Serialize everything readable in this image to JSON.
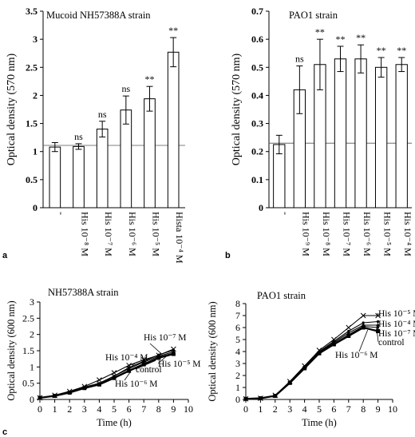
{
  "panel_letters": [
    "a",
    "b",
    "c"
  ],
  "chart_data": [
    {
      "type": "bar",
      "panel": "a",
      "title": "Mucoid NH57388A strain",
      "ylabel": "Optical density (570 nm)",
      "ylim": [
        0,
        3.5
      ],
      "yticks": [
        "0",
        "0.5",
        "1",
        "1.5",
        "2",
        "2.5",
        "3",
        "3.5"
      ],
      "categories": [
        "-",
        "His 10⁻⁸ M",
        "His 10⁻⁷ M",
        "His 10⁻⁶ M",
        "His 10⁻⁵ M",
        "Hista 10⁻⁴ M"
      ],
      "values": [
        1.08,
        1.09,
        1.4,
        1.74,
        1.94,
        2.77
      ],
      "errors": [
        0.08,
        0.05,
        0.14,
        0.25,
        0.22,
        0.26
      ],
      "annotations": [
        "",
        "ns",
        "ns",
        "ns",
        "**",
        "**"
      ],
      "reference_line": 1.11,
      "grid": false
    },
    {
      "type": "bar",
      "panel": "b",
      "title": "PAO1 strain",
      "ylabel": "Optical density (570 nm)",
      "ylim": [
        0,
        0.7
      ],
      "yticks": [
        "0",
        "0.1",
        "0.2",
        "0.3",
        "0.4",
        "0.5",
        "0.6",
        "0.7"
      ],
      "categories": [
        "-",
        "His 10⁻⁹ M",
        "His 10⁻⁸ M",
        "His 10⁻⁷ M",
        "His 10⁻⁶ M",
        "His 10⁻⁵ M",
        "His 10⁻⁴ M"
      ],
      "values": [
        0.225,
        0.42,
        0.51,
        0.53,
        0.53,
        0.5,
        0.51
      ],
      "errors": [
        0.033,
        0.085,
        0.09,
        0.045,
        0.05,
        0.035,
        0.025
      ],
      "annotations": [
        "",
        "ns",
        "**",
        "**",
        "**",
        "**",
        "**"
      ],
      "reference_line": 0.23,
      "grid": false
    },
    {
      "type": "line",
      "panel": "c-left",
      "title": "NH57388A strain",
      "xlabel": "Time (h)",
      "ylabel": "Optical density (600 nm)",
      "xlim": [
        0,
        10
      ],
      "ylim": [
        0,
        3
      ],
      "xticks": [
        "0",
        "1",
        "2",
        "3",
        "4",
        "5",
        "6",
        "7",
        "8",
        "9",
        "10"
      ],
      "yticks": [
        "0",
        "0.5",
        "1",
        "1.5",
        "2",
        "2.5",
        "3"
      ],
      "x": [
        0,
        1,
        2,
        3,
        4,
        5,
        6,
        7,
        8,
        9
      ],
      "series": [
        {
          "name": "His 10⁻⁴ M",
          "values": [
            0.05,
            0.13,
            0.25,
            0.4,
            0.6,
            0.82,
            1.05,
            1.22,
            1.36,
            1.55
          ]
        },
        {
          "name": "His 10⁻⁷ M",
          "values": [
            0.05,
            0.12,
            0.23,
            0.38,
            0.5,
            0.72,
            0.98,
            1.18,
            1.37,
            1.52
          ]
        },
        {
          "name": "His 10⁻⁵ M",
          "values": [
            0.05,
            0.12,
            0.22,
            0.37,
            0.49,
            0.72,
            0.95,
            1.15,
            1.33,
            1.47
          ]
        },
        {
          "name": "control",
          "values": [
            0.05,
            0.12,
            0.22,
            0.36,
            0.47,
            0.68,
            0.9,
            1.1,
            1.3,
            1.43
          ]
        },
        {
          "name": "His 10⁻⁶ M",
          "values": [
            0.05,
            0.11,
            0.21,
            0.35,
            0.46,
            0.66,
            0.88,
            1.08,
            1.28,
            1.4
          ]
        }
      ],
      "labels": [
        "His 10⁻⁴ M",
        "His 10⁻⁷ M",
        "His 10⁻⁵ M",
        "control",
        "His 10⁻⁶ M"
      ]
    },
    {
      "type": "line",
      "panel": "c-right",
      "title": "PAO1 strain",
      "xlabel": "Time (h)",
      "ylabel": "Optical density (600 nm)",
      "xlim": [
        0,
        10
      ],
      "ylim": [
        0,
        8
      ],
      "xticks": [
        "0",
        "1",
        "2",
        "3",
        "4",
        "5",
        "6",
        "7",
        "8",
        "9",
        "10"
      ],
      "yticks": [
        "0",
        "1",
        "2",
        "3",
        "4",
        "5",
        "6",
        "7",
        "8"
      ],
      "x": [
        0,
        1,
        2,
        3,
        4,
        5,
        6,
        7,
        8,
        9
      ],
      "series": [
        {
          "name": "His 10⁻⁵ M",
          "values": [
            0.05,
            0.1,
            0.35,
            1.5,
            2.8,
            4.1,
            5.0,
            6.0,
            7.0,
            7.0
          ]
        },
        {
          "name": "His 10⁻⁴ M",
          "values": [
            0.05,
            0.1,
            0.33,
            1.45,
            2.75,
            4.0,
            4.85,
            5.7,
            6.4,
            6.5
          ]
        },
        {
          "name": "His 10⁻⁷ M",
          "values": [
            0.05,
            0.1,
            0.32,
            1.42,
            2.7,
            3.95,
            4.75,
            5.55,
            6.2,
            6.2
          ]
        },
        {
          "name": "control",
          "values": [
            0.05,
            0.1,
            0.3,
            1.4,
            2.65,
            3.9,
            4.65,
            5.4,
            6.1,
            6.0
          ]
        },
        {
          "name": "His 10⁻⁶ M",
          "values": [
            0.05,
            0.1,
            0.3,
            1.38,
            2.6,
            3.85,
            4.6,
            5.3,
            6.0,
            5.7
          ]
        }
      ],
      "labels": [
        "His 10⁻⁵ M",
        "His 10⁻⁴ M",
        "His 10⁻⁷ M",
        "control",
        "His 10⁻⁶ M"
      ]
    }
  ]
}
